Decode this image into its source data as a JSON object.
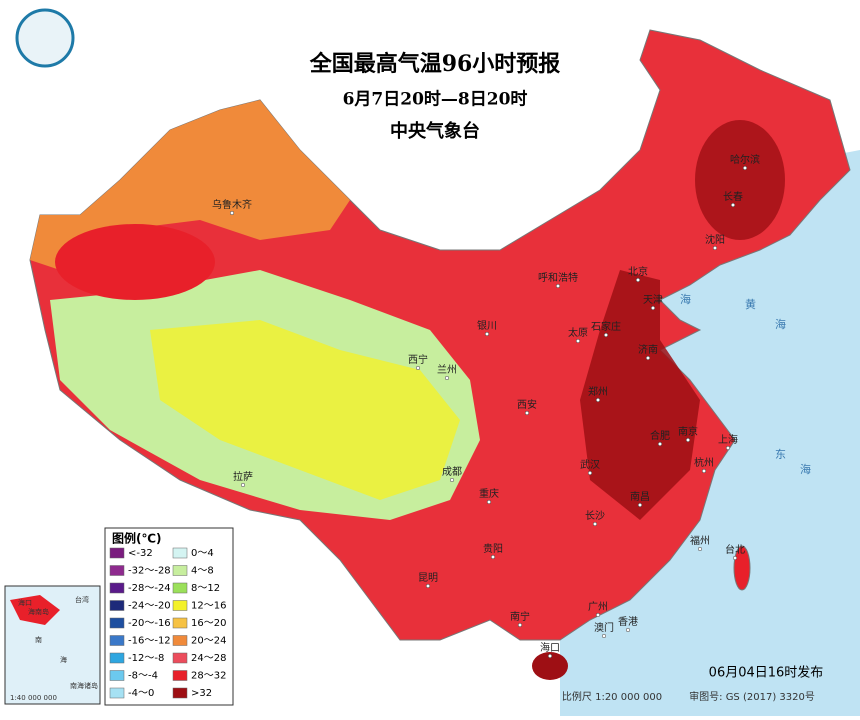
{
  "header": {
    "title": "全国最高气温96小时预报",
    "subtitle": "6月7日20时—8日20时",
    "issuer": "中央气象台"
  },
  "legend": {
    "title": "图例(℃)",
    "items": [
      {
        "label": "<-32",
        "color": "#7a1c7e"
      },
      {
        "label": "-32～-28",
        "color": "#8e2a8e"
      },
      {
        "label": "-28～-24",
        "color": "#5a1a8a"
      },
      {
        "label": "-24～-20",
        "color": "#1d2a7a"
      },
      {
        "label": "-20～-16",
        "color": "#1e4fa0"
      },
      {
        "label": "-16～-12",
        "color": "#3a78c8"
      },
      {
        "label": "-12～-8",
        "color": "#2ea6e0"
      },
      {
        "label": "-8～-4",
        "color": "#6cc9ee"
      },
      {
        "label": "-4～0",
        "color": "#a6e1f3"
      },
      {
        "label": "0～4",
        "color": "#d4f4f2"
      },
      {
        "label": "4～8",
        "color": "#c7ee9e"
      },
      {
        "label": "8～12",
        "color": "#9be05a"
      },
      {
        "label": "12～16",
        "color": "#f3f12a"
      },
      {
        "label": "16～20",
        "color": "#f6c244"
      },
      {
        "label": "20～24",
        "color": "#f08a3a"
      },
      {
        "label": "24～28",
        "color": "#ec4d5c"
      },
      {
        "label": "28～32",
        "color": "#e8202a"
      },
      {
        "label": ">32",
        "color": "#9e0f14"
      }
    ]
  },
  "cities": [
    "乌鲁木齐",
    "拉萨",
    "西宁",
    "兰州",
    "银川",
    "呼和浩特",
    "太原",
    "石家庄",
    "北京",
    "天津",
    "济南",
    "郑州",
    "西安",
    "成都",
    "重庆",
    "武汉",
    "合肥",
    "南京",
    "上海",
    "杭州",
    "南昌",
    "长沙",
    "贵阳",
    "昆明",
    "南宁",
    "广州",
    "福州",
    "台北",
    "香港",
    "澳门",
    "海口",
    "哈尔滨",
    "长春",
    "沈阳"
  ],
  "seas": [
    "海",
    "黄",
    "海",
    "东",
    "海"
  ],
  "inset": {
    "labels": [
      "海口",
      "海南岛",
      "台湾",
      "南",
      "海",
      "南海诸岛"
    ],
    "scale": "1:40 000 000"
  },
  "footer": {
    "issue_time": "06月04日16时发布",
    "scale": "比例尺 1:20 000 000",
    "map_number": "审图号: GS (2017) 3320号"
  }
}
